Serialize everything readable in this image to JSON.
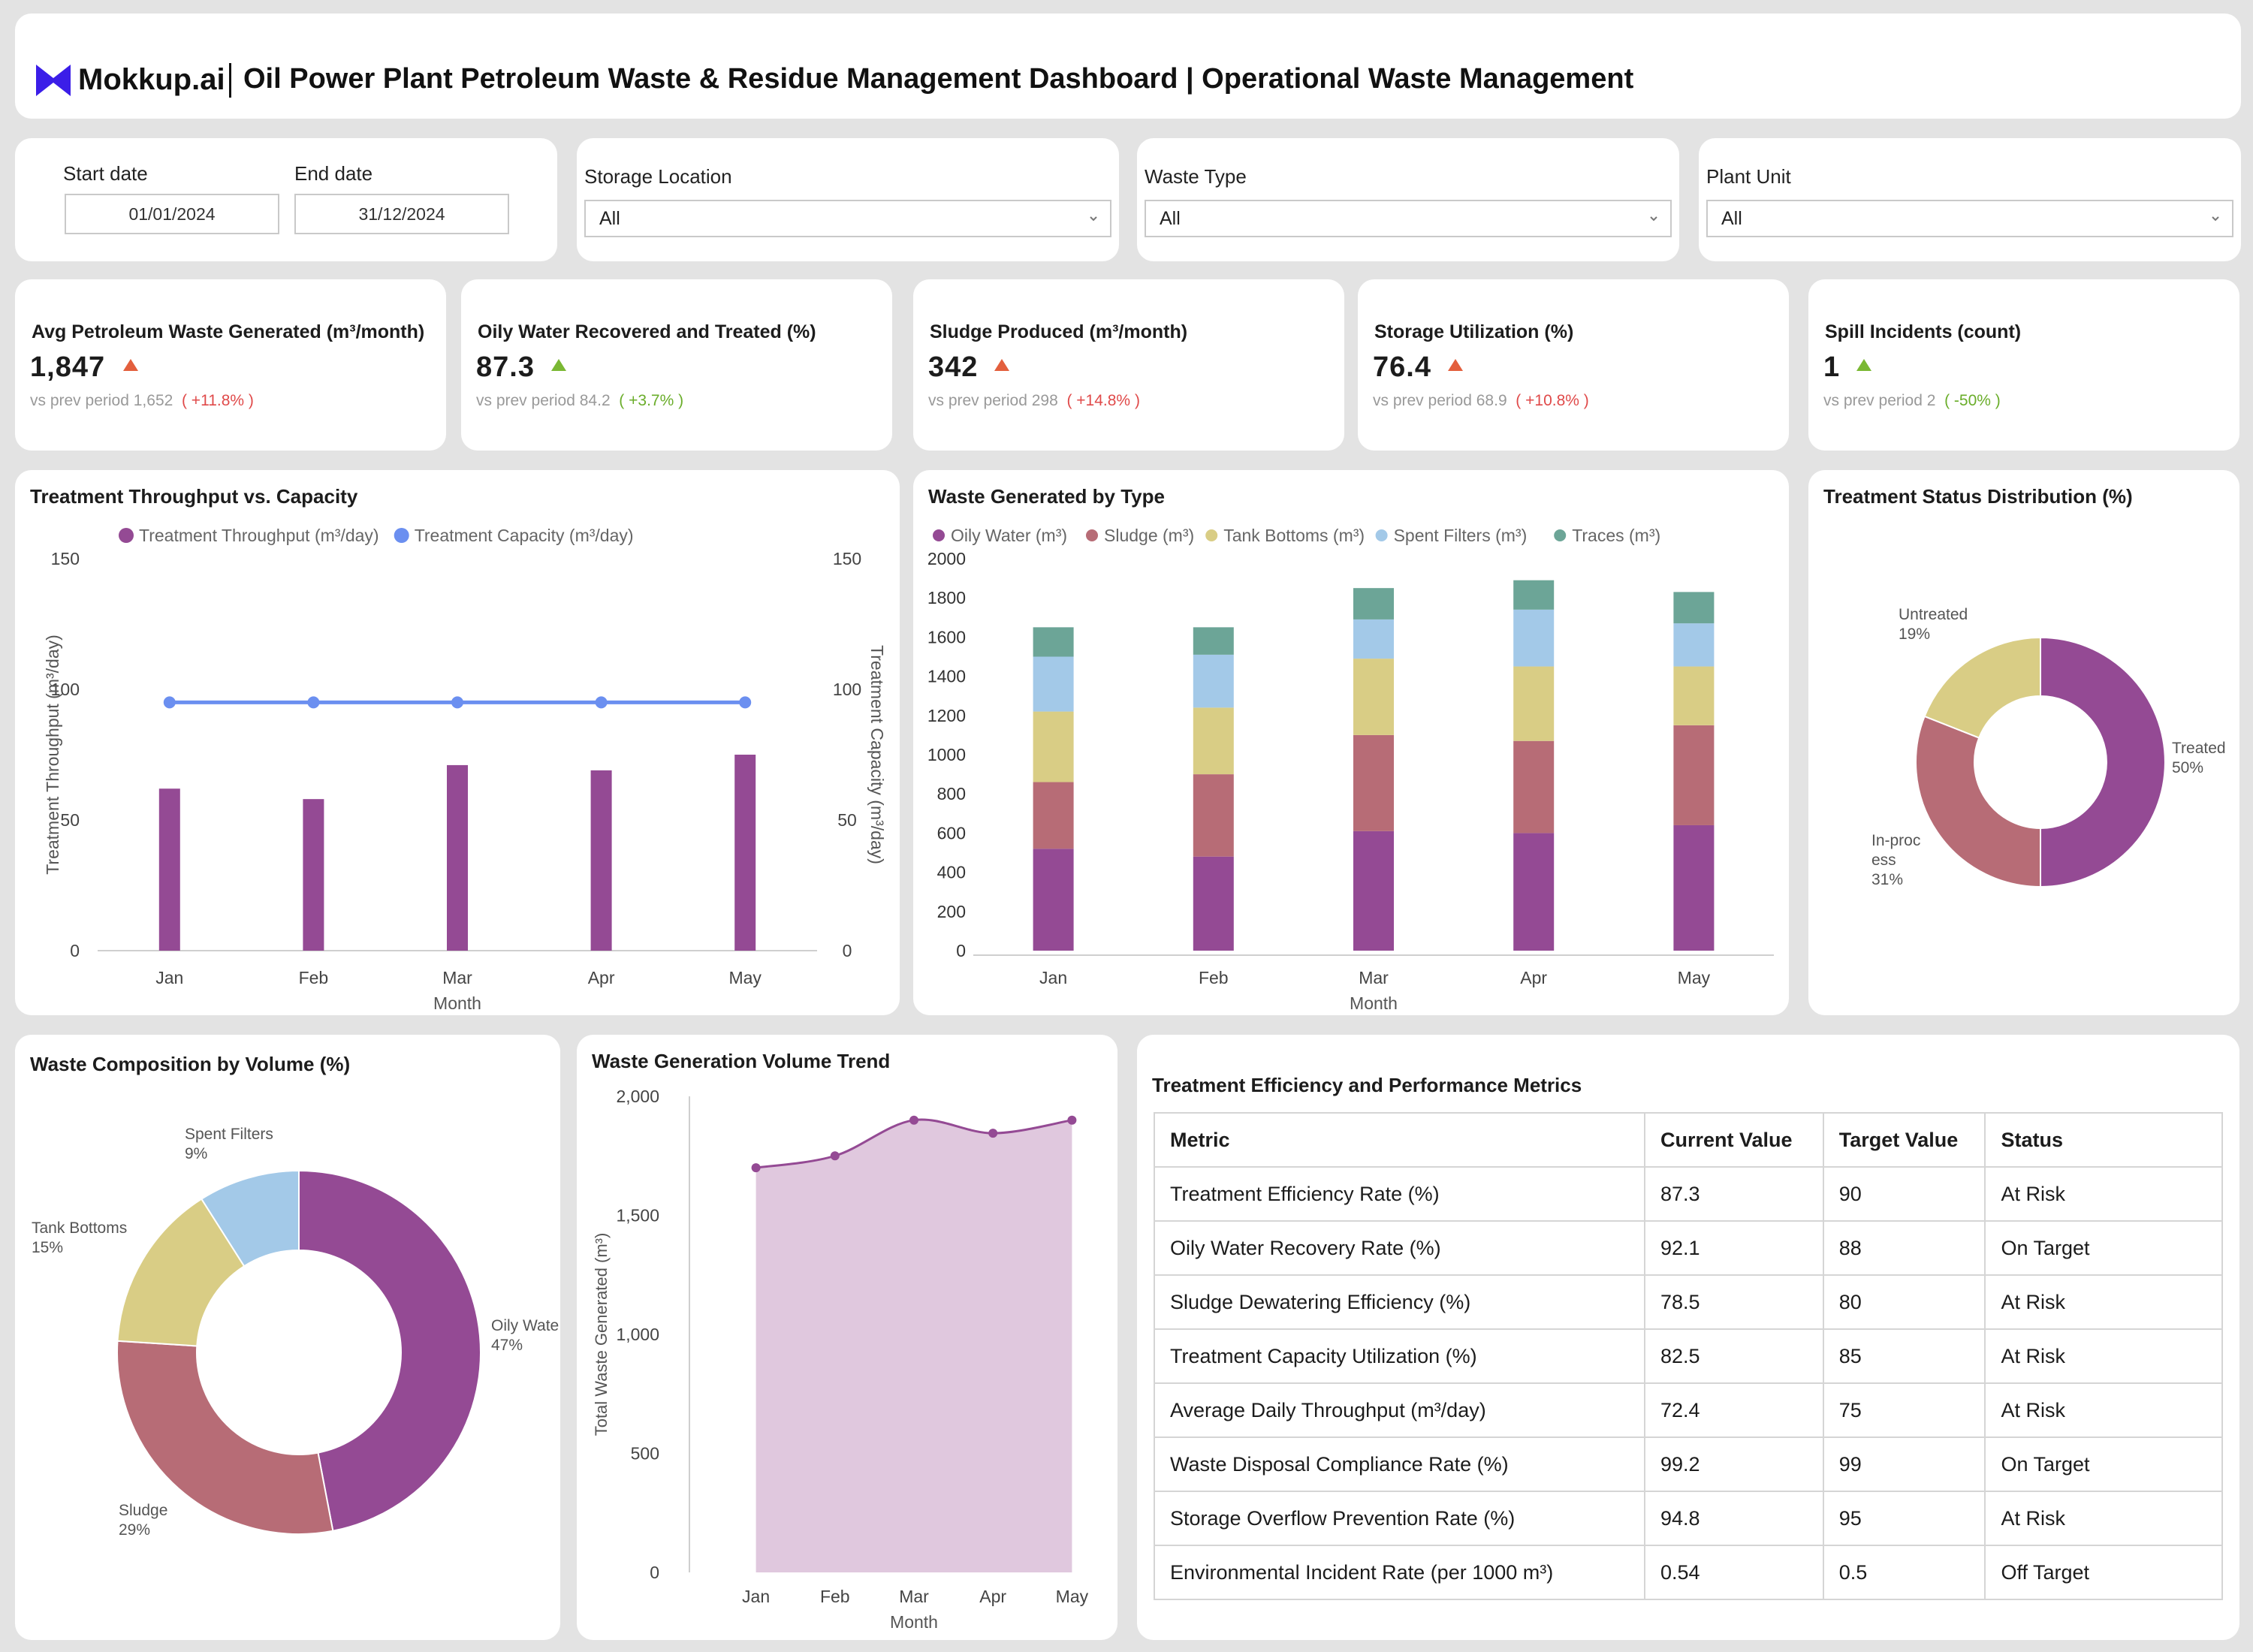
{
  "header": {
    "brand": "Mokkup.ai",
    "title": "Oil Power Plant Petroleum Waste & Residue Management Dashboard | Operational Waste Management",
    "logo_color": "#3b1ee8"
  },
  "filters": {
    "start_label": "Start date",
    "start_value": "01/01/2024",
    "end_label": "End date",
    "end_value": "31/12/2024",
    "storage_label": "Storage Location",
    "storage_value": "All",
    "waste_label": "Waste Type",
    "waste_value": "All",
    "plant_label": "Plant Unit",
    "plant_value": "All"
  },
  "kpis": [
    {
      "label": "Avg Petroleum Waste Generated (m³/month)",
      "value": "1,847",
      "prev_label": "vs prev period",
      "prev_value": "1,652",
      "delta": "( +11.8% )",
      "trend": "up",
      "good": false
    },
    {
      "label": "Oily Water Recovered and Treated (%)",
      "value": "87.3",
      "prev_label": "vs prev period",
      "prev_value": "84.2",
      "delta": "( +3.7% )",
      "trend": "up",
      "good": true
    },
    {
      "label": "Sludge Produced (m³/month)",
      "value": "342",
      "prev_label": "vs prev period",
      "prev_value": "298",
      "delta": "( +14.8% )",
      "trend": "up",
      "good": false
    },
    {
      "label": "Storage Utilization (%)",
      "value": "76.4",
      "prev_label": "vs prev period",
      "prev_value": "68.9",
      "delta": "( +10.8% )",
      "trend": "up",
      "good": false
    },
    {
      "label": "Spill Incidents (count)",
      "value": "1",
      "prev_label": "vs prev period",
      "prev_value": "2",
      "delta": "( -50% )",
      "trend": "up",
      "good": true
    }
  ],
  "chart_titles": {
    "throughput": "Treatment Throughput vs. Capacity",
    "waste_type": "Waste Generated by Type",
    "status": "Treatment Status Distribution (%)",
    "composition": "Waste Composition by Volume (%)",
    "trend": "Waste Generation Volume Trend",
    "table": "Treatment Efficiency and Performance Metrics"
  },
  "chart_data": [
    {
      "id": "throughput",
      "type": "bar",
      "title": "Treatment Throughput vs. Capacity",
      "categories": [
        "Jan",
        "Feb",
        "Mar",
        "Apr",
        "May"
      ],
      "xlabel": "Month",
      "ylabel": "Treatment Throughput (m³/day)",
      "y2label": "Treatment Capacity (m³/day)",
      "ylim": [
        0,
        150
      ],
      "yticks": [
        0,
        50,
        100,
        150
      ],
      "legend": "top",
      "series": [
        {
          "name": "Treatment Throughput (m³/day)",
          "type": "bar",
          "axis": "left",
          "color": "#944a94",
          "values": [
            62,
            58,
            71,
            69,
            75
          ]
        },
        {
          "name": "Treatment Capacity (m³/day)",
          "type": "line",
          "axis": "right",
          "color": "#6b8ff0",
          "values": [
            95,
            95,
            95,
            95,
            95
          ]
        }
      ]
    },
    {
      "id": "waste_type",
      "type": "bar",
      "stacked": true,
      "title": "Waste Generated by Type",
      "categories": [
        "Jan",
        "Feb",
        "Mar",
        "Apr",
        "May"
      ],
      "xlabel": "Month",
      "ylim": [
        0,
        2000
      ],
      "yticks": [
        0,
        200,
        400,
        600,
        800,
        1000,
        1200,
        1400,
        1600,
        1800,
        2000
      ],
      "legend": "top",
      "series": [
        {
          "name": "Oily Water (m³)",
          "color": "#944a94",
          "values": [
            520,
            480,
            610,
            600,
            640
          ]
        },
        {
          "name": "Sludge (m³)",
          "color": "#b76c76",
          "values": [
            340,
            420,
            490,
            470,
            510
          ]
        },
        {
          "name": "Tank Bottoms (m³)",
          "color": "#d9cd85",
          "values": [
            360,
            340,
            390,
            380,
            300
          ]
        },
        {
          "name": "Spent Filters (m³)",
          "color": "#a3c9e8",
          "values": [
            280,
            270,
            200,
            290,
            220
          ]
        },
        {
          "name": "Traces (m³)",
          "color": "#6ca597",
          "values": [
            150,
            140,
            160,
            150,
            160
          ]
        }
      ]
    },
    {
      "id": "status",
      "type": "pie",
      "donut": true,
      "title": "Treatment Status Distribution (%)",
      "labels": [
        "Treated",
        "In-process",
        "Untreated"
      ],
      "label_lines": [
        [
          "Treated"
        ],
        [
          "In-proc",
          "ess"
        ],
        [
          "Untreated"
        ]
      ],
      "values": [
        50,
        31,
        19
      ],
      "colors": [
        "#944a94",
        "#b76c76",
        "#d9cd85"
      ]
    },
    {
      "id": "composition",
      "type": "pie",
      "donut": true,
      "title": "Waste Composition by Volume (%)",
      "labels": [
        "Oily Water",
        "Sludge",
        "Tank Bottoms",
        "Spent Filters"
      ],
      "label_lines": [
        [
          "Oily Wate"
        ],
        [
          "Sludge"
        ],
        [
          "Tank Bottoms"
        ],
        [
          "Spent Filters"
        ]
      ],
      "values": [
        47,
        29,
        15,
        9
      ],
      "colors": [
        "#944a94",
        "#b76c76",
        "#d9cd85",
        "#a3c9e8"
      ]
    },
    {
      "id": "trend",
      "type": "area",
      "title": "Waste Generation Volume Trend",
      "categories": [
        "Jan",
        "Feb",
        "Mar",
        "Apr",
        "May"
      ],
      "values": [
        1700,
        1750,
        1900,
        1845,
        1900
      ],
      "xlabel": "Month",
      "ylabel": "Total Waste Generated (m³)",
      "ylim": [
        0,
        2000
      ],
      "yticks": [
        0,
        500,
        1000,
        1500,
        2000
      ],
      "ytick_labels": [
        "0",
        "500",
        "1,000",
        "1,500",
        "2,000"
      ],
      "color": "#944a94",
      "fill": "#e0c8de"
    },
    {
      "id": "metrics_table",
      "type": "table",
      "title": "Treatment Efficiency and Performance Metrics",
      "columns": [
        "Metric",
        "Current Value",
        "Target Value",
        "Status"
      ],
      "rows": [
        [
          "Treatment Efficiency Rate (%)",
          "87.3",
          "90",
          "At Risk"
        ],
        [
          "Oily Water Recovery Rate (%)",
          "92.1",
          "88",
          "On Target"
        ],
        [
          "Sludge Dewatering Efficiency (%)",
          "78.5",
          "80",
          "At Risk"
        ],
        [
          "Treatment Capacity Utilization (%)",
          "82.5",
          "85",
          "At Risk"
        ],
        [
          "Average Daily Throughput (m³/day)",
          "72.4",
          "75",
          "At Risk"
        ],
        [
          "Waste Disposal Compliance Rate (%)",
          "99.2",
          "99",
          "On Target"
        ],
        [
          "Storage Overflow Prevention Rate (%)",
          "94.8",
          "95",
          "At Risk"
        ],
        [
          "Environmental Incident Rate (per 1000 m³)",
          "0.54",
          "0.5",
          "Off Target"
        ]
      ]
    }
  ]
}
